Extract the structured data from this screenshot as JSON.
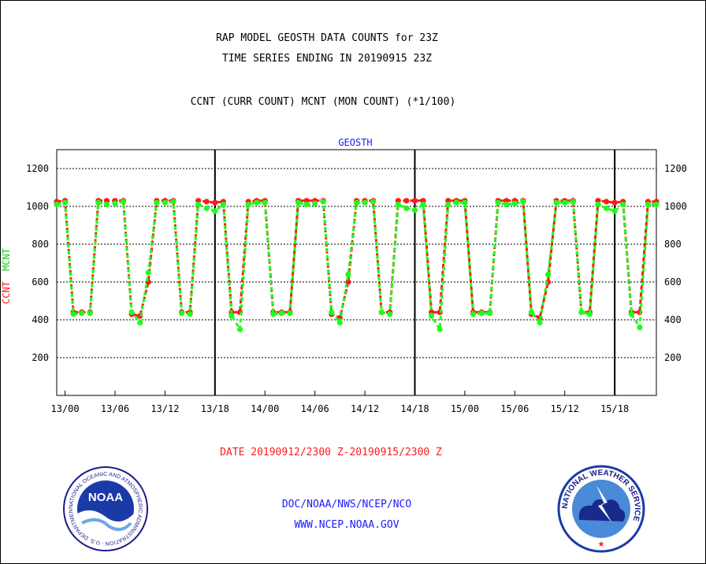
{
  "colors": {
    "ccnt": "#ff1a1a",
    "mcnt": "#1aff1a",
    "axis": "#000000",
    "blue_text": "#1a1aff",
    "red_text": "#ff1a1a"
  },
  "header": {
    "line1": "RAP MODEL GEOSTH DATA COUNTS for 23Z",
    "line2": "TIME SERIES ENDING IN 20190915 23Z",
    "line3": "CCNT (CURR COUNT) MCNT (MON COUNT) (*1/100)"
  },
  "footer": {
    "date_range": "DATE 20190912/2300 Z-20190915/2300 Z",
    "org": "DOC/NOAA/NWS/NCEP/NCO",
    "url": "WWW.NCEP.NOAA.GOV"
  },
  "logos": {
    "noaa_text": "NOAA",
    "noaa_ring": "NATIONAL OCEANIC AND ATMOSPHERIC ADMINISTRATION · U.S. DEPARTMENT OF COMMERCE ·",
    "nws_ring": "NATIONAL WEATHER SERVICE"
  },
  "chart_data": {
    "type": "line",
    "title": "GEOSTH",
    "ylabel_ccnt": "CCNT",
    "ylabel_mcnt": "MCNT",
    "ylim": [
      0,
      1300
    ],
    "yticks": [
      200,
      400,
      600,
      800,
      1000,
      1200
    ],
    "xlim_hours": [
      -1,
      71
    ],
    "xticks": [
      {
        "h": 0,
        "label": "13/00"
      },
      {
        "h": 6,
        "label": "13/06"
      },
      {
        "h": 12,
        "label": "13/12"
      },
      {
        "h": 18,
        "label": "13/18"
      },
      {
        "h": 24,
        "label": "14/00"
      },
      {
        "h": 30,
        "label": "14/06"
      },
      {
        "h": 36,
        "label": "14/12"
      },
      {
        "h": 42,
        "label": "14/18"
      },
      {
        "h": 48,
        "label": "15/00"
      },
      {
        "h": 54,
        "label": "15/06"
      },
      {
        "h": 60,
        "label": "15/12"
      },
      {
        "h": 66,
        "label": "15/18"
      }
    ],
    "day_boundaries_hours": [
      18,
      42,
      66
    ],
    "grid": "horizontal dashed",
    "series": [
      {
        "name": "CCNT",
        "x_hours": [
          -1,
          0,
          1,
          2,
          3,
          4,
          5,
          6,
          7,
          8,
          9,
          10,
          11,
          12,
          13,
          14,
          15,
          16,
          17,
          18,
          19,
          20,
          21,
          22,
          23,
          24,
          25,
          26,
          27,
          28,
          29,
          30,
          31,
          32,
          33,
          34,
          35,
          36,
          37,
          38,
          39,
          40,
          41,
          42,
          43,
          44,
          45,
          46,
          47,
          48,
          49,
          50,
          51,
          52,
          53,
          54,
          55,
          56,
          57,
          58,
          59,
          60,
          61,
          62,
          63,
          64,
          65,
          66,
          67,
          68,
          69,
          70,
          71
        ],
        "values": [
          1025,
          1030,
          440,
          440,
          440,
          1030,
          1030,
          1030,
          1030,
          430,
          420,
          600,
          1030,
          1030,
          1030,
          440,
          440,
          1030,
          1025,
          1020,
          1025,
          440,
          440,
          1025,
          1030,
          1030,
          440,
          440,
          440,
          1030,
          1030,
          1030,
          1030,
          430,
          410,
          600,
          1030,
          1030,
          1030,
          440,
          440,
          1030,
          1030,
          1030,
          1030,
          440,
          440,
          1030,
          1030,
          1030,
          440,
          440,
          440,
          1030,
          1030,
          1030,
          1030,
          430,
          410,
          600,
          1030,
          1030,
          1030,
          440,
          440,
          1030,
          1025,
          1020,
          1025,
          440,
          440,
          1025,
          1025
        ]
      },
      {
        "name": "MCNT",
        "x_hours": [
          -1,
          0,
          1,
          2,
          3,
          4,
          5,
          6,
          7,
          8,
          9,
          10,
          11,
          12,
          13,
          14,
          15,
          16,
          17,
          18,
          19,
          20,
          21,
          22,
          23,
          24,
          25,
          26,
          27,
          28,
          29,
          30,
          31,
          32,
          33,
          34,
          35,
          36,
          37,
          38,
          39,
          40,
          41,
          42,
          43,
          44,
          45,
          46,
          47,
          48,
          49,
          50,
          51,
          52,
          53,
          54,
          55,
          56,
          57,
          58,
          59,
          60,
          61,
          62,
          63,
          64,
          65,
          66,
          67,
          68,
          69,
          70,
          71
        ],
        "values": [
          1010,
          1020,
          430,
          435,
          435,
          1020,
          1010,
          1015,
          1025,
          440,
          385,
          650,
          1020,
          1020,
          1025,
          435,
          430,
          1010,
          990,
          975,
          1010,
          420,
          350,
          1010,
          1020,
          1020,
          430,
          435,
          435,
          1020,
          1010,
          1015,
          1025,
          440,
          385,
          640,
          1020,
          1020,
          1025,
          440,
          430,
          1010,
          990,
          980,
          1010,
          420,
          350,
          1010,
          1020,
          1020,
          430,
          435,
          435,
          1020,
          1010,
          1015,
          1025,
          440,
          385,
          640,
          1020,
          1020,
          1025,
          440,
          430,
          1010,
          990,
          975,
          1010,
          430,
          360,
          1010,
          1010
        ]
      }
    ]
  }
}
